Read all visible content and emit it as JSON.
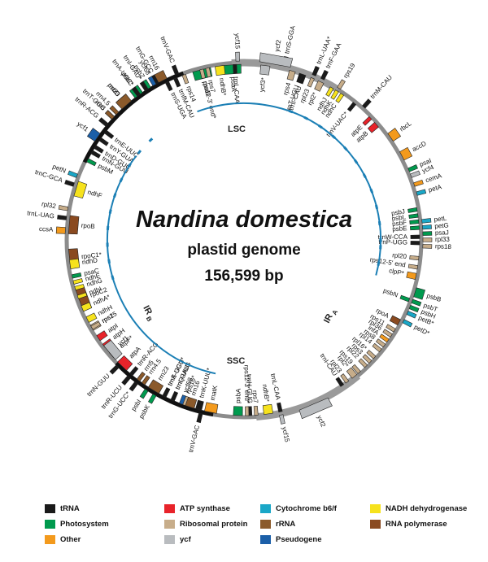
{
  "title": {
    "species": "Nandina domestica",
    "subtitle": "plastid genome",
    "length": "156,599 bp"
  },
  "regions": {
    "lsc": "LSC",
    "ssc": "SSC",
    "ira_main": "IR",
    "ira_sub": "A",
    "irb_main": "IR",
    "irb_sub": "B"
  },
  "colors": {
    "trna": "#1a1a1a",
    "photosystem": "#009a4e",
    "other": "#f39a1d",
    "atp": "#e8232a",
    "ribosomal": "#c7ad8a",
    "ycf": "#b9bcbf",
    "cytb6f": "#1aa7c7",
    "rrna": "#8b5a2b",
    "pseudogene": "#1b5fa8",
    "ndh": "#f6e21d",
    "rnapol": "#8a4a20",
    "backbone": "#8c8c8c",
    "inner": "#1b7fb5"
  },
  "legend": [
    {
      "label": "tRNA",
      "color": "trna"
    },
    {
      "label": "ATP synthase",
      "color": "atp"
    },
    {
      "label": "Cytochrome b6/f",
      "color": "cytb6f"
    },
    {
      "label": "NADH dehydrogenase",
      "color": "ndh"
    },
    {
      "label": "Photosystem",
      "color": "photosystem"
    },
    {
      "label": "Ribosomal protein",
      "color": "ribosomal"
    },
    {
      "label": "rRNA",
      "color": "rrna"
    },
    {
      "label": "RNA polymerase",
      "color": "rnapol"
    },
    {
      "label": "Other",
      "color": "other"
    },
    {
      "label": "ycf",
      "color": "ycf"
    },
    {
      "label": "Pseudogene",
      "color": "pseudogene"
    }
  ],
  "genes": [
    {
      "name": "trnH-GUG",
      "angle": 2,
      "span": 1,
      "side": "in",
      "cat": "trna"
    },
    {
      "name": "psbA",
      "angle": 358,
      "span": 3,
      "side": "in",
      "cat": "photosystem"
    },
    {
      "name": "matK",
      "angle": 349,
      "span": 4,
      "side": "in",
      "cat": "other"
    },
    {
      "name": "trnK-UUU*",
      "angle": 345,
      "span": 2,
      "side": "in",
      "cat": "trna"
    },
    {
      "name": "rps16*",
      "angle": 340,
      "span": 2,
      "side": "in",
      "cat": "ribosomal"
    },
    {
      "name": "trnQ-UUG",
      "angle": 336,
      "span": 1,
      "side": "in",
      "cat": "trna"
    },
    {
      "name": "trnS-GCU",
      "angle": 333,
      "span": 1,
      "side": "in",
      "cat": "trna"
    },
    {
      "name": "psbK",
      "angle": 330,
      "span": 1,
      "side": "out",
      "cat": "photosystem"
    },
    {
      "name": "psbI",
      "angle": 327,
      "span": 1,
      "side": "out",
      "cat": "photosystem"
    },
    {
      "name": "trnG-UCC*",
      "angle": 323,
      "span": 1,
      "side": "out",
      "cat": "trna"
    },
    {
      "name": "trnR-UCU",
      "angle": 320,
      "span": 1,
      "side": "out",
      "cat": "trna"
    },
    {
      "name": "atpA",
      "angle": 316,
      "span": 4,
      "side": "in",
      "cat": "atp"
    },
    {
      "name": "atpF*",
      "angle": 311,
      "span": 2,
      "side": "in",
      "cat": "atp"
    },
    {
      "name": "atpH",
      "angle": 307,
      "span": 1,
      "side": "in",
      "cat": "atp"
    },
    {
      "name": "atpI",
      "angle": 304,
      "span": 2,
      "side": "in",
      "cat": "atp"
    },
    {
      "name": "rps2",
      "angle": 300,
      "span": 2,
      "side": "in",
      "cat": "ribosomal"
    },
    {
      "name": "rpoC2",
      "angle": 290,
      "span": 8,
      "side": "in",
      "cat": "rnapol"
    },
    {
      "name": "rpoC1*",
      "angle": 276,
      "span": 6,
      "side": "in",
      "cat": "rnapol"
    },
    {
      "name": "rpoB",
      "angle": 265,
      "span": 6,
      "side": "in",
      "cat": "rnapol"
    },
    {
      "name": "trnC-GCA",
      "angle": 252,
      "span": 1,
      "side": "out",
      "cat": "trna"
    },
    {
      "name": "petN",
      "angle": 249,
      "span": 1,
      "side": "out",
      "cat": "cytb6f"
    },
    {
      "name": "psbM",
      "angle": 243,
      "span": 1,
      "side": "in",
      "cat": "photosystem"
    },
    {
      "name": "trnD-GUC",
      "angle": 238,
      "span": 1,
      "side": "in",
      "cat": "trna"
    },
    {
      "name": "trnY-GUA",
      "angle": 235,
      "span": 1,
      "side": "in",
      "cat": "trna"
    },
    {
      "name": "trnE-UUC",
      "angle": 232,
      "span": 1,
      "side": "in",
      "cat": "trna"
    },
    {
      "name": "trnT-GGU",
      "angle": 227,
      "span": 1,
      "side": "out",
      "cat": "trna"
    },
    {
      "name": "psbD",
      "angle": 221,
      "span": 3,
      "side": "out",
      "cat": "photosystem"
    },
    {
      "name": "psbC",
      "angle": 216,
      "span": 3,
      "side": "out",
      "cat": "photosystem"
    },
    {
      "name": "psbZ",
      "angle": 212,
      "span": 1,
      "side": "out",
      "cat": "photosystem"
    },
    {
      "name": "trnG-GCC",
      "angle": 209,
      "span": 1,
      "side": "out",
      "cat": "trna"
    },
    {
      "name": "trnS-UGA",
      "angle": 206,
      "span": 1,
      "side": "in",
      "cat": "trna"
    },
    {
      "name": "trnfM-CAU",
      "angle": 203,
      "span": 1,
      "side": "in",
      "cat": "trna"
    },
    {
      "name": "rps14",
      "angle": 200,
      "span": 1,
      "side": "in",
      "cat": "ribosomal"
    },
    {
      "name": "psaB",
      "angle": 194,
      "span": 6,
      "side": "in",
      "cat": "photosystem"
    },
    {
      "name": "psaA",
      "angle": 184,
      "span": 6,
      "side": "in",
      "cat": "photosystem"
    },
    {
      "name": "ycf3*",
      "angle": 173,
      "span": 3,
      "side": "in",
      "cat": "ycf"
    },
    {
      "name": "trnS-GGA",
      "angle": 167,
      "span": 1,
      "side": "out",
      "cat": "trna"
    },
    {
      "name": "rps4",
      "angle": 164,
      "span": 2,
      "side": "in",
      "cat": "ribosomal"
    },
    {
      "name": "trnT-UGU",
      "angle": 161,
      "span": 1,
      "side": "in",
      "cat": "trna"
    },
    {
      "name": "trnL-UAA*",
      "angle": 157,
      "span": 1,
      "side": "out",
      "cat": "trna"
    },
    {
      "name": "trnF-GAA",
      "angle": 154,
      "span": 1,
      "side": "out",
      "cat": "trna"
    },
    {
      "name": "ndhJ",
      "angle": 150,
      "span": 1,
      "side": "in",
      "cat": "ndh"
    },
    {
      "name": "ndhK",
      "angle": 148,
      "span": 1,
      "side": "in",
      "cat": "ndh"
    },
    {
      "name": "ndhC",
      "angle": 146,
      "span": 1,
      "side": "in",
      "cat": "ndh"
    },
    {
      "name": "trnV-UAC*",
      "angle": 141,
      "span": 1,
      "side": "in",
      "cat": "trna"
    },
    {
      "name": "trnM-CAU",
      "angle": 138,
      "span": 1,
      "side": "out",
      "cat": "trna"
    },
    {
      "name": "atpE",
      "angle": 134,
      "span": 1,
      "side": "in",
      "cat": "atp"
    },
    {
      "name": "atpB",
      "angle": 131,
      "span": 2,
      "side": "in",
      "cat": "atp"
    },
    {
      "name": "rbcL",
      "angle": 125,
      "span": 3,
      "side": "out",
      "cat": "other"
    },
    {
      "name": "accD",
      "angle": 118,
      "span": 3,
      "side": "out",
      "cat": "other"
    },
    {
      "name": "psaI",
      "angle": 113,
      "span": 1,
      "side": "out",
      "cat": "photosystem"
    },
    {
      "name": "ycf4",
      "angle": 111,
      "span": 1,
      "side": "out",
      "cat": "ycf"
    },
    {
      "name": "cemA",
      "angle": 108,
      "span": 1,
      "side": "out",
      "cat": "other"
    },
    {
      "name": "petA",
      "angle": 105,
      "span": 1,
      "side": "out",
      "cat": "cytb6f"
    },
    {
      "name": "psbJ",
      "angle": 100,
      "span": 1,
      "side": "in",
      "cat": "photosystem"
    },
    {
      "name": "psbL",
      "angle": 98,
      "span": 1,
      "side": "in",
      "cat": "photosystem"
    },
    {
      "name": "psbF",
      "angle": 96,
      "span": 1,
      "side": "in",
      "cat": "photosystem"
    },
    {
      "name": "psbE",
      "angle": 94,
      "span": 1,
      "side": "in",
      "cat": "photosystem"
    },
    {
      "name": "trnW-CCA",
      "angle": 91,
      "span": 1,
      "side": "in",
      "cat": "trna"
    },
    {
      "name": "trnP-UGG",
      "angle": 89,
      "span": 1,
      "side": "in",
      "cat": "trna"
    },
    {
      "name": "petL",
      "angle": 96,
      "span": 1,
      "side": "out",
      "cat": "cytb6f"
    },
    {
      "name": "petG",
      "angle": 94,
      "span": 1,
      "side": "out",
      "cat": "cytb6f"
    },
    {
      "name": "psaJ",
      "angle": 92,
      "span": 1,
      "side": "out",
      "cat": "photosystem"
    },
    {
      "name": "rpl33",
      "angle": 90,
      "span": 1,
      "side": "out",
      "cat": "ribosomal"
    },
    {
      "name": "rps18",
      "angle": 88,
      "span": 1,
      "side": "out",
      "cat": "ribosomal"
    },
    {
      "name": "rpl20",
      "angle": 84,
      "span": 1,
      "side": "in",
      "cat": "ribosomal"
    },
    {
      "name": "rps12-5' end",
      "angle": 81,
      "span": 1,
      "side": "in",
      "cat": "ribosomal"
    },
    {
      "name": "clpP*",
      "angle": 78,
      "span": 2,
      "side": "in",
      "cat": "other"
    },
    {
      "name": "psbB",
      "angle": 73,
      "span": 3,
      "side": "out",
      "cat": "photosystem"
    },
    {
      "name": "psbT",
      "angle": 70,
      "span": 1,
      "side": "out",
      "cat": "photosystem"
    },
    {
      "name": "psbH",
      "angle": 68,
      "span": 1,
      "side": "out",
      "cat": "photosystem"
    },
    {
      "name": "petB*",
      "angle": 66,
      "span": 1,
      "side": "out",
      "cat": "cytb6f"
    },
    {
      "name": "petD*",
      "angle": 63,
      "span": 1,
      "side": "out",
      "cat": "cytb6f"
    },
    {
      "name": "psbN",
      "angle": 70,
      "span": 1,
      "side": "in",
      "cat": "photosystem"
    },
    {
      "name": "rpoA",
      "angle": 62,
      "span": 2,
      "side": "in",
      "cat": "rnapol"
    },
    {
      "name": "rps11",
      "angle": 59,
      "span": 1,
      "side": "in",
      "cat": "ribosomal"
    },
    {
      "name": "rpl36",
      "angle": 57,
      "span": 1,
      "side": "in",
      "cat": "ribosomal"
    },
    {
      "name": "infA",
      "angle": 55,
      "span": 1,
      "side": "in",
      "cat": "other"
    },
    {
      "name": "rps8",
      "angle": 53,
      "span": 1,
      "side": "in",
      "cat": "ribosomal"
    },
    {
      "name": "rpl14",
      "angle": 51,
      "span": 1,
      "side": "in",
      "cat": "ribosomal"
    },
    {
      "name": "rpl16*",
      "angle": 48,
      "span": 1,
      "side": "in",
      "cat": "ribosomal"
    },
    {
      "name": "rps3",
      "angle": 46,
      "span": 1,
      "side": "in",
      "cat": "ribosomal"
    },
    {
      "name": "rpl22",
      "angle": 44,
      "span": 1,
      "side": "in",
      "cat": "ribosomal"
    },
    {
      "name": "rps19",
      "angle": 41,
      "span": 1,
      "side": "in",
      "cat": "ribosomal"
    },
    {
      "name": "rpl2*",
      "angle": 39,
      "span": 2,
      "side": "in",
      "cat": "ribosomal"
    },
    {
      "name": "rpl23",
      "angle": 36,
      "span": 1,
      "side": "in",
      "cat": "ribosomal"
    },
    {
      "name": "trnI-CAU",
      "angle": 34,
      "span": 1,
      "side": "in",
      "cat": "trna"
    },
    {
      "name": "ycf2",
      "angle": 23,
      "span": 10,
      "side": "out",
      "cat": "ycf"
    },
    {
      "name": "ycf15",
      "angle": 12,
      "span": 1,
      "side": "out",
      "cat": "ycf"
    },
    {
      "name": "trnL-CAA",
      "angle": 12,
      "span": 1,
      "side": "in",
      "cat": "trna"
    },
    {
      "name": "ndhB*",
      "angle": 8,
      "span": 3,
      "side": "in",
      "cat": "ndh"
    },
    {
      "name": "rps7",
      "angle": 4,
      "span": 1,
      "side": "in",
      "cat": "ribosomal"
    },
    {
      "name": "rps12-3' end*",
      "angle": 1,
      "span": 1,
      "side": "in",
      "cat": "ribosomal"
    },
    {
      "name": "trnV-GAC",
      "angle": -14,
      "span": 1,
      "side": "out",
      "cat": "trna"
    },
    {
      "name": "rrn16",
      "angle": -18,
      "span": 3,
      "side": "in",
      "cat": "rrna"
    },
    {
      "name": "ycf68",
      "angle": -21,
      "span": 1,
      "side": "in",
      "cat": "pseudogene"
    },
    {
      "name": "trnI-GAU*",
      "angle": -24,
      "span": 1,
      "side": "in",
      "cat": "trna"
    },
    {
      "name": "trnA-UGC*",
      "angle": -27,
      "span": 1,
      "side": "in",
      "cat": "trna"
    },
    {
      "name": "rrn23",
      "angle": -31,
      "span": 4,
      "side": "in",
      "cat": "rrna"
    },
    {
      "name": "rrn4.5",
      "angle": -35,
      "span": 1,
      "side": "in",
      "cat": "rrna"
    },
    {
      "name": "rrn5",
      "angle": -37,
      "span": 1,
      "side": "in",
      "cat": "rrna"
    },
    {
      "name": "trnR-ACG",
      "angle": -40,
      "span": 1,
      "side": "in",
      "cat": "trna"
    },
    {
      "name": "ycf1",
      "angle": -50,
      "span": 6,
      "side": "in",
      "cat": "ycf"
    },
    {
      "name": "trnN-GUU",
      "angle": -45,
      "span": 1,
      "side": "out",
      "cat": "trna"
    },
    {
      "name": "rps15",
      "angle": -60,
      "span": 1,
      "side": "in",
      "cat": "ribosomal"
    },
    {
      "name": "ndhH",
      "angle": -63,
      "span": 2,
      "side": "in",
      "cat": "ndh"
    },
    {
      "name": "ndhA*",
      "angle": -67,
      "span": 2,
      "side": "in",
      "cat": "ndh"
    },
    {
      "name": "ndhI",
      "angle": -71,
      "span": 1,
      "side": "in",
      "cat": "ndh"
    },
    {
      "name": "ndhG",
      "angle": -74,
      "span": 1,
      "side": "in",
      "cat": "ndh"
    },
    {
      "name": "ndhE",
      "angle": -76,
      "span": 1,
      "side": "in",
      "cat": "ndh"
    },
    {
      "name": "psaC",
      "angle": -78,
      "span": 1,
      "side": "in",
      "cat": "photosystem"
    },
    {
      "name": "ndhD",
      "angle": -82,
      "span": 3,
      "side": "in",
      "cat": "ndh"
    },
    {
      "name": "ccsA",
      "angle": -93,
      "span": 2,
      "side": "out",
      "cat": "other"
    },
    {
      "name": "trnL-UAG",
      "angle": -97,
      "span": 1,
      "side": "out",
      "cat": "trna"
    },
    {
      "name": "rpl32",
      "angle": -100,
      "span": 1,
      "side": "out",
      "cat": "ribosomal"
    },
    {
      "name": "ndhF",
      "angle": -107,
      "span": 5,
      "side": "in",
      "cat": "ndh"
    },
    {
      "name": "trnN-GUU",
      "angle": -120,
      "span": 1,
      "side": "in",
      "cat": "trna"
    },
    {
      "name": "ycf1",
      "angle": -125,
      "span": 3,
      "side": "out",
      "cat": "pseudogene"
    },
    {
      "name": "trnR-ACG",
      "angle": -130,
      "span": 1,
      "side": "out",
      "cat": "trna"
    },
    {
      "name": "rrn5",
      "angle": -133,
      "span": 1,
      "side": "out",
      "cat": "rrna"
    },
    {
      "name": "rrn4.5",
      "angle": -135,
      "span": 1,
      "side": "out",
      "cat": "rrna"
    },
    {
      "name": "rrn23",
      "angle": -139,
      "span": 4,
      "side": "out",
      "cat": "rrna"
    },
    {
      "name": "trnA-UGC*",
      "angle": -144,
      "span": 1,
      "side": "out",
      "cat": "trna"
    },
    {
      "name": "trnI-GAU*",
      "angle": -147,
      "span": 1,
      "side": "out",
      "cat": "trna"
    },
    {
      "name": "ycf68",
      "angle": -150,
      "span": 1,
      "side": "out",
      "cat": "pseudogene"
    },
    {
      "name": "rrn16",
      "angle": -153,
      "span": 3,
      "side": "out",
      "cat": "rrna"
    },
    {
      "name": "trnV-GAC",
      "angle": -158,
      "span": 1,
      "side": "out",
      "cat": "trna"
    },
    {
      "name": "rps12-3' end*",
      "angle": -166,
      "span": 1,
      "side": "in",
      "cat": "ribosomal"
    },
    {
      "name": "rps7",
      "angle": -168,
      "span": 1,
      "side": "in",
      "cat": "ribosomal"
    },
    {
      "name": "ndhB*",
      "angle": -172,
      "span": 3,
      "side": "in",
      "cat": "ndh"
    },
    {
      "name": "trnL-CAA",
      "angle": -177,
      "span": 1,
      "side": "in",
      "cat": "trna"
    },
    {
      "name": "ycf15",
      "angle": -178,
      "span": 1,
      "side": "out",
      "cat": "ycf"
    },
    {
      "name": "ycf2",
      "angle": -190,
      "span": 10,
      "side": "out",
      "cat": "ycf"
    },
    {
      "name": "trnI-CAU",
      "angle": -200,
      "span": 1,
      "side": "in",
      "cat": "trna"
    },
    {
      "name": "rpl23",
      "angle": -203,
      "span": 1,
      "side": "in",
      "cat": "ribosomal"
    },
    {
      "name": "rpl2*",
      "angle": -206,
      "span": 2,
      "side": "in",
      "cat": "ribosomal"
    },
    {
      "name": "rps19",
      "angle": -212,
      "span": 1,
      "side": "out",
      "cat": "ribosomal"
    }
  ]
}
